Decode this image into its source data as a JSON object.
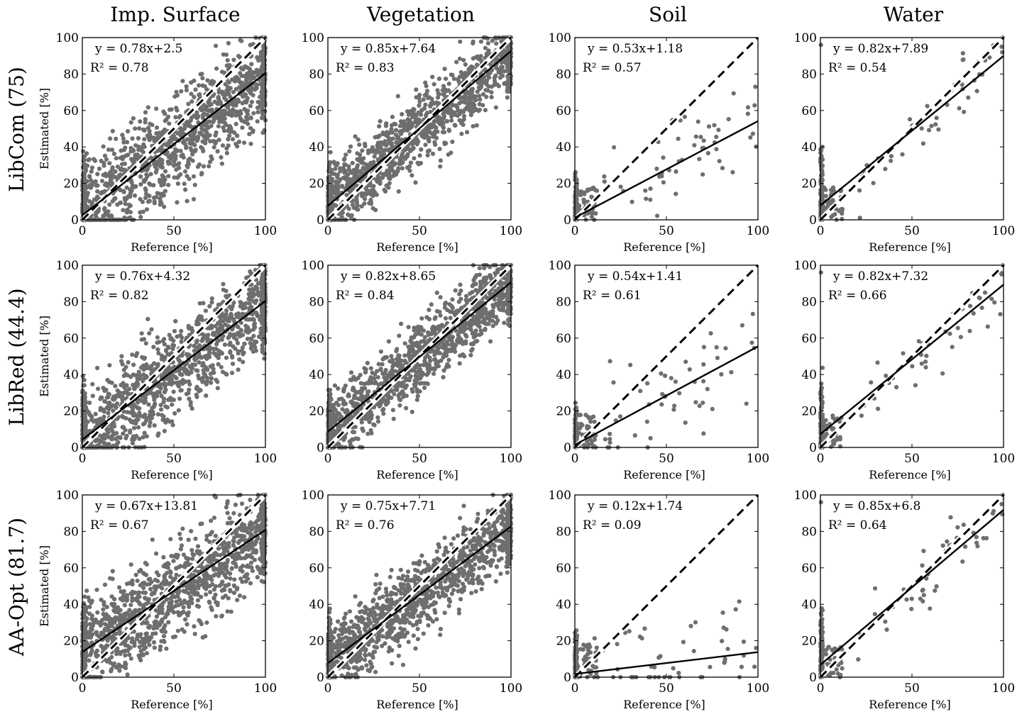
{
  "figure": {
    "column_titles": [
      "Imp. Surface",
      "Vegetation",
      "Soil",
      "Water"
    ],
    "row_titles": [
      "LibCom (75)",
      "LibRed (44.4)",
      "AA-Opt (81.7)"
    ],
    "xlabel": "Reference [%]",
    "ylabel": "Estimated [%]",
    "ticks": [
      "0",
      "50",
      "100"
    ],
    "yticks": [
      "0",
      "20",
      "40",
      "60",
      "80",
      "100"
    ]
  },
  "chart_data": [
    {
      "type": "scatter",
      "row": 0,
      "col": 0,
      "title": "Imp. Surface",
      "row_label": "LibCom (75)",
      "xlabel": "Reference [%]",
      "ylabel": "Estimated [%]",
      "xlim": [
        0,
        100
      ],
      "ylim": [
        0,
        100
      ],
      "grid": false,
      "slope": 0.78,
      "intercept": 2.5,
      "r2": 0.78,
      "eq_text": "y = 0.78x+2.5",
      "r2_text": "R² = 0.78",
      "point_cloud": "dense",
      "identity_line": "dashed 1:1",
      "fit_line": "solid"
    },
    {
      "type": "scatter",
      "row": 0,
      "col": 1,
      "title": "Vegetation",
      "row_label": "LibCom (75)",
      "xlabel": "Reference [%]",
      "ylabel": "Estimated [%]",
      "xlim": [
        0,
        100
      ],
      "ylim": [
        0,
        100
      ],
      "grid": false,
      "slope": 0.85,
      "intercept": 7.64,
      "r2": 0.83,
      "eq_text": "y = 0.85x+7.64",
      "r2_text": "R² = 0.83",
      "point_cloud": "dense",
      "identity_line": "dashed 1:1",
      "fit_line": "solid"
    },
    {
      "type": "scatter",
      "row": 0,
      "col": 2,
      "title": "Soil",
      "row_label": "LibCom (75)",
      "xlabel": "Reference [%]",
      "ylabel": "Estimated [%]",
      "xlim": [
        0,
        100
      ],
      "ylim": [
        0,
        100
      ],
      "grid": false,
      "slope": 0.53,
      "intercept": 1.18,
      "r2": 0.57,
      "eq_text": "y = 0.53x+1.18",
      "r2_text": "R² = 0.57",
      "point_cloud": "sparse",
      "identity_line": "dashed 1:1",
      "fit_line": "solid"
    },
    {
      "type": "scatter",
      "row": 0,
      "col": 3,
      "title": "Water",
      "row_label": "LibCom (75)",
      "xlabel": "Reference [%]",
      "ylabel": "Estimated [%]",
      "xlim": [
        0,
        100
      ],
      "ylim": [
        0,
        100
      ],
      "grid": false,
      "slope": 0.82,
      "intercept": 7.89,
      "r2": 0.54,
      "eq_text": "y = 0.82x+7.89",
      "r2_text": "R² = 0.54",
      "point_cloud": "sparse",
      "identity_line": "dashed 1:1",
      "fit_line": "solid"
    },
    {
      "type": "scatter",
      "row": 1,
      "col": 0,
      "title": "Imp. Surface",
      "row_label": "LibRed (44.4)",
      "xlabel": "Reference [%]",
      "ylabel": "Estimated [%]",
      "xlim": [
        0,
        100
      ],
      "ylim": [
        0,
        100
      ],
      "grid": false,
      "slope": 0.76,
      "intercept": 4.32,
      "r2": 0.82,
      "eq_text": "y = 0.76x+4.32",
      "r2_text": "R² = 0.82",
      "point_cloud": "dense",
      "identity_line": "dashed 1:1",
      "fit_line": "solid"
    },
    {
      "type": "scatter",
      "row": 1,
      "col": 1,
      "title": "Vegetation",
      "row_label": "LibRed (44.4)",
      "xlabel": "Reference [%]",
      "ylabel": "Estimated [%]",
      "xlim": [
        0,
        100
      ],
      "ylim": [
        0,
        100
      ],
      "grid": false,
      "slope": 0.82,
      "intercept": 8.65,
      "r2": 0.84,
      "eq_text": "y = 0.82x+8.65",
      "r2_text": "R² = 0.84",
      "point_cloud": "dense",
      "identity_line": "dashed 1:1",
      "fit_line": "solid"
    },
    {
      "type": "scatter",
      "row": 1,
      "col": 2,
      "title": "Soil",
      "row_label": "LibRed (44.4)",
      "xlabel": "Reference [%]",
      "ylabel": "Estimated [%]",
      "xlim": [
        0,
        100
      ],
      "ylim": [
        0,
        100
      ],
      "grid": false,
      "slope": 0.54,
      "intercept": 1.41,
      "r2": 0.61,
      "eq_text": "y = 0.54x+1.41",
      "r2_text": "R² = 0.61",
      "point_cloud": "sparse",
      "identity_line": "dashed 1:1",
      "fit_line": "solid"
    },
    {
      "type": "scatter",
      "row": 1,
      "col": 3,
      "title": "Water",
      "row_label": "LibRed (44.4)",
      "xlabel": "Reference [%]",
      "ylabel": "Estimated [%]",
      "xlim": [
        0,
        100
      ],
      "ylim": [
        0,
        100
      ],
      "grid": false,
      "slope": 0.82,
      "intercept": 7.32,
      "r2": 0.66,
      "eq_text": "y = 0.82x+7.32",
      "r2_text": "R² = 0.66",
      "point_cloud": "sparse",
      "identity_line": "dashed 1:1",
      "fit_line": "solid"
    },
    {
      "type": "scatter",
      "row": 2,
      "col": 0,
      "title": "Imp. Surface",
      "row_label": "AA-Opt (81.7)",
      "xlabel": "Reference [%]",
      "ylabel": "Estimated [%]",
      "xlim": [
        0,
        100
      ],
      "ylim": [
        0,
        100
      ],
      "grid": false,
      "slope": 0.67,
      "intercept": 13.81,
      "r2": 0.67,
      "eq_text": "y = 0.67x+13.81",
      "r2_text": "R² = 0.67",
      "point_cloud": "dense",
      "identity_line": "dashed 1:1",
      "fit_line": "solid"
    },
    {
      "type": "scatter",
      "row": 2,
      "col": 1,
      "title": "Vegetation",
      "row_label": "AA-Opt (81.7)",
      "xlabel": "Reference [%]",
      "ylabel": "Estimated [%]",
      "xlim": [
        0,
        100
      ],
      "ylim": [
        0,
        100
      ],
      "grid": false,
      "slope": 0.75,
      "intercept": 7.71,
      "r2": 0.76,
      "eq_text": "y = 0.75x+7.71",
      "r2_text": "R² = 0.76",
      "point_cloud": "dense",
      "identity_line": "dashed 1:1",
      "fit_line": "solid"
    },
    {
      "type": "scatter",
      "row": 2,
      "col": 2,
      "title": "Soil",
      "row_label": "AA-Opt (81.7)",
      "xlabel": "Reference [%]",
      "ylabel": "Estimated [%]",
      "xlim": [
        0,
        100
      ],
      "ylim": [
        0,
        100
      ],
      "grid": false,
      "slope": 0.12,
      "intercept": 1.74,
      "r2": 0.09,
      "eq_text": "y = 0.12x+1.74",
      "r2_text": "R² = 0.09",
      "point_cloud": "sparse",
      "identity_line": "dashed 1:1",
      "fit_line": "solid"
    },
    {
      "type": "scatter",
      "row": 2,
      "col": 3,
      "title": "Water",
      "row_label": "AA-Opt (81.7)",
      "xlabel": "Reference [%]",
      "ylabel": "Estimated [%]",
      "xlim": [
        0,
        100
      ],
      "ylim": [
        0,
        100
      ],
      "grid": false,
      "slope": 0.85,
      "intercept": 6.8,
      "r2": 0.64,
      "eq_text": "y = 0.85x+6.8",
      "r2_text": "R² = 0.64",
      "point_cloud": "sparse",
      "identity_line": "dashed 1:1",
      "fit_line": "solid"
    }
  ],
  "colors": {
    "points": "#6e6e6e",
    "lines": "#000000",
    "axes": "#000000",
    "background": "#ffffff"
  }
}
